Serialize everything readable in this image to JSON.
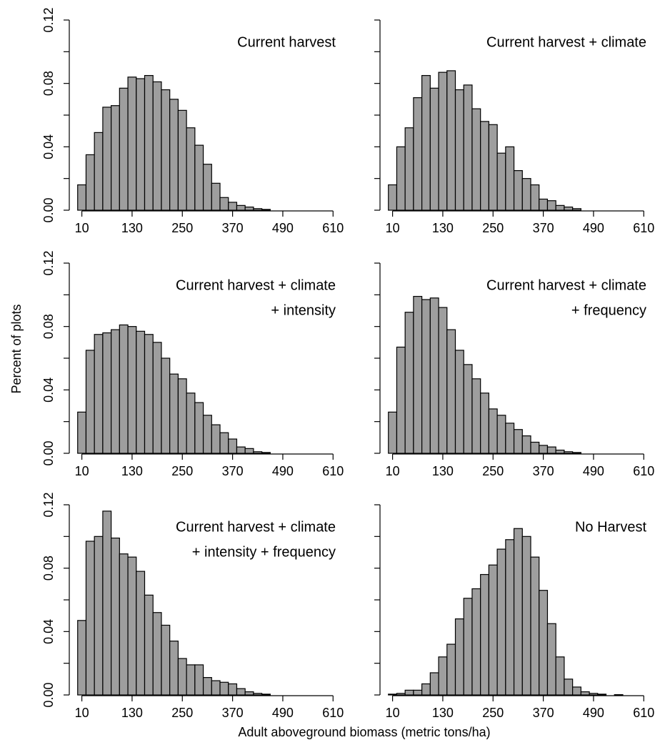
{
  "shared_axes": {
    "ylabel": "Percent of plots",
    "xlabel": "Adult aboveground biomass (metric tons/ha)"
  },
  "chart_data": [
    {
      "type": "histogram",
      "title": [
        "Current harvest"
      ],
      "color": "#9e9e9e",
      "bins": [
        0,
        20,
        40,
        60,
        80,
        100,
        120,
        140,
        160,
        180,
        200,
        220,
        240,
        260,
        280,
        300,
        320,
        340,
        360,
        380,
        400,
        420,
        440,
        460,
        480,
        500,
        520,
        540,
        560,
        580,
        600,
        620
      ],
      "values": [
        0.016,
        0.035,
        0.049,
        0.065,
        0.066,
        0.077,
        0.084,
        0.083,
        0.085,
        0.081,
        0.076,
        0.07,
        0.063,
        0.052,
        0.041,
        0.029,
        0.017,
        0.008,
        0.005,
        0.003,
        0.002,
        0.001,
        0.0005,
        0,
        0,
        0,
        0,
        0,
        0,
        0,
        0
      ],
      "xlim": [
        -20,
        630
      ],
      "ylim": [
        0,
        0.12
      ],
      "xticks": [
        10,
        130,
        250,
        370,
        490,
        610
      ],
      "yticks": [
        {
          "value": 0,
          "label": "0.00"
        },
        {
          "value": 0.02,
          "label": null
        },
        {
          "value": 0.04,
          "label": "0.04"
        },
        {
          "value": 0.06,
          "label": null
        },
        {
          "value": 0.08,
          "label": "0.08"
        },
        {
          "value": 0.1,
          "label": null
        },
        {
          "value": 0.12,
          "label": "0.12"
        }
      ]
    },
    {
      "type": "histogram",
      "title": [
        "Current harvest + climate"
      ],
      "color": "#9e9e9e",
      "bins": [
        0,
        20,
        40,
        60,
        80,
        100,
        120,
        140,
        160,
        180,
        200,
        220,
        240,
        260,
        280,
        300,
        320,
        340,
        360,
        380,
        400,
        420,
        440,
        460,
        480,
        500,
        520,
        540,
        560,
        580,
        600,
        620
      ],
      "values": [
        0.016,
        0.04,
        0.052,
        0.071,
        0.085,
        0.077,
        0.087,
        0.088,
        0.076,
        0.079,
        0.064,
        0.056,
        0.054,
        0.036,
        0.04,
        0.025,
        0.02,
        0.016,
        0.007,
        0.006,
        0.003,
        0.002,
        0.001,
        0,
        0,
        0,
        0,
        0,
        0,
        0,
        0
      ],
      "xlim": [
        -20,
        630
      ],
      "ylim": [
        0,
        0.12
      ],
      "xticks": [
        10,
        130,
        250,
        370,
        490,
        610
      ],
      "yticks": [
        {
          "value": 0,
          "label": null
        },
        {
          "value": 0.02,
          "label": null
        },
        {
          "value": 0.04,
          "label": null
        },
        {
          "value": 0.06,
          "label": null
        },
        {
          "value": 0.08,
          "label": null
        },
        {
          "value": 0.1,
          "label": null
        },
        {
          "value": 0.12,
          "label": null
        }
      ]
    },
    {
      "type": "histogram",
      "title": [
        "Current harvest + climate",
        "+ intensity"
      ],
      "color": "#9e9e9e",
      "bins": [
        0,
        20,
        40,
        60,
        80,
        100,
        120,
        140,
        160,
        180,
        200,
        220,
        240,
        260,
        280,
        300,
        320,
        340,
        360,
        380,
        400,
        420,
        440,
        460,
        480,
        500,
        520,
        540,
        560,
        580,
        600,
        620
      ],
      "values": [
        0.026,
        0.065,
        0.075,
        0.076,
        0.078,
        0.081,
        0.08,
        0.077,
        0.075,
        0.07,
        0.06,
        0.05,
        0.047,
        0.038,
        0.032,
        0.024,
        0.018,
        0.013,
        0.009,
        0.004,
        0.003,
        0.001,
        0.0005,
        0,
        0,
        0,
        0,
        0,
        0,
        0,
        0
      ],
      "xlim": [
        -20,
        630
      ],
      "ylim": [
        0,
        0.12
      ],
      "xticks": [
        10,
        130,
        250,
        370,
        490,
        610
      ],
      "yticks": [
        {
          "value": 0,
          "label": "0.00"
        },
        {
          "value": 0.02,
          "label": null
        },
        {
          "value": 0.04,
          "label": "0.04"
        },
        {
          "value": 0.06,
          "label": null
        },
        {
          "value": 0.08,
          "label": "0.08"
        },
        {
          "value": 0.1,
          "label": null
        },
        {
          "value": 0.12,
          "label": "0.12"
        }
      ]
    },
    {
      "type": "histogram",
      "title": [
        "Current harvest + climate",
        "+ frequency"
      ],
      "color": "#9e9e9e",
      "bins": [
        0,
        20,
        40,
        60,
        80,
        100,
        120,
        140,
        160,
        180,
        200,
        220,
        240,
        260,
        280,
        300,
        320,
        340,
        360,
        380,
        400,
        420,
        440,
        460,
        480,
        500,
        520,
        540,
        560,
        580,
        600,
        620
      ],
      "values": [
        0.026,
        0.067,
        0.089,
        0.099,
        0.097,
        0.098,
        0.092,
        0.078,
        0.065,
        0.056,
        0.047,
        0.038,
        0.028,
        0.024,
        0.019,
        0.015,
        0.011,
        0.007,
        0.005,
        0.004,
        0.002,
        0.001,
        0.0005,
        0,
        0,
        0,
        0,
        0,
        0,
        0,
        0
      ],
      "xlim": [
        -20,
        630
      ],
      "ylim": [
        0,
        0.12
      ],
      "xticks": [
        10,
        130,
        250,
        370,
        490,
        610
      ],
      "yticks": [
        {
          "value": 0,
          "label": null
        },
        {
          "value": 0.02,
          "label": null
        },
        {
          "value": 0.04,
          "label": null
        },
        {
          "value": 0.06,
          "label": null
        },
        {
          "value": 0.08,
          "label": null
        },
        {
          "value": 0.1,
          "label": null
        },
        {
          "value": 0.12,
          "label": null
        }
      ]
    },
    {
      "type": "histogram",
      "title": [
        "Current harvest + climate",
        "+ intensity + frequency"
      ],
      "color": "#9e9e9e",
      "bins": [
        0,
        20,
        40,
        60,
        80,
        100,
        120,
        140,
        160,
        180,
        200,
        220,
        240,
        260,
        280,
        300,
        320,
        340,
        360,
        380,
        400,
        420,
        440,
        460,
        480,
        500,
        520,
        540,
        560,
        580,
        600,
        620
      ],
      "values": [
        0.047,
        0.097,
        0.1,
        0.116,
        0.099,
        0.089,
        0.087,
        0.078,
        0.063,
        0.052,
        0.044,
        0.034,
        0.023,
        0.019,
        0.019,
        0.011,
        0.009,
        0.008,
        0.007,
        0.004,
        0.002,
        0.001,
        0.0005,
        0,
        0,
        0,
        0,
        0,
        0,
        0,
        0
      ],
      "xlim": [
        -20,
        630
      ],
      "ylim": [
        0,
        0.12
      ],
      "xticks": [
        10,
        130,
        250,
        370,
        490,
        610
      ],
      "yticks": [
        {
          "value": 0,
          "label": "0.00"
        },
        {
          "value": 0.02,
          "label": null
        },
        {
          "value": 0.04,
          "label": "0.04"
        },
        {
          "value": 0.06,
          "label": null
        },
        {
          "value": 0.08,
          "label": "0.08"
        },
        {
          "value": 0.1,
          "label": null
        },
        {
          "value": 0.12,
          "label": "0.12"
        }
      ]
    },
    {
      "type": "histogram",
      "title": [
        "No Harvest"
      ],
      "color": "#9e9e9e",
      "bins": [
        0,
        20,
        40,
        60,
        80,
        100,
        120,
        140,
        160,
        180,
        200,
        220,
        240,
        260,
        280,
        300,
        320,
        340,
        360,
        380,
        400,
        420,
        440,
        460,
        480,
        500,
        520,
        540,
        560,
        580,
        600,
        620
      ],
      "values": [
        0.0005,
        0.001,
        0.003,
        0.003,
        0.007,
        0.014,
        0.024,
        0.032,
        0.048,
        0.061,
        0.067,
        0.076,
        0.082,
        0.092,
        0.098,
        0.105,
        0.1,
        0.087,
        0.066,
        0.045,
        0.024,
        0.01,
        0.005,
        0.002,
        0.001,
        0.0005,
        0,
        0.0002,
        0,
        0,
        0
      ],
      "xlim": [
        -20,
        630
      ],
      "ylim": [
        0,
        0.12
      ],
      "xticks": [
        10,
        130,
        250,
        370,
        490,
        610
      ],
      "yticks": [
        {
          "value": 0,
          "label": null
        },
        {
          "value": 0.02,
          "label": null
        },
        {
          "value": 0.04,
          "label": null
        },
        {
          "value": 0.06,
          "label": null
        },
        {
          "value": 0.08,
          "label": null
        },
        {
          "value": 0.1,
          "label": null
        },
        {
          "value": 0.12,
          "label": null
        }
      ]
    }
  ]
}
